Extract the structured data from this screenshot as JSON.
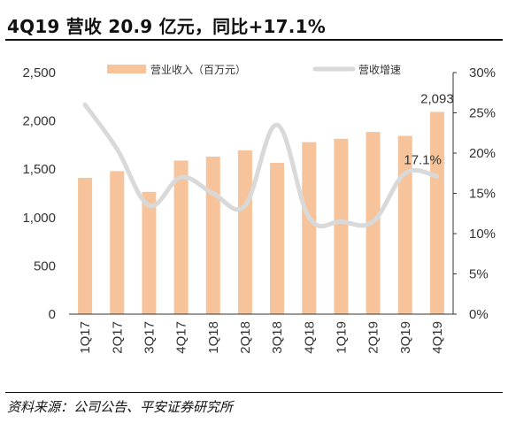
{
  "header": {
    "title": "4Q19 营收 20.9 亿元，同比+17.1%"
  },
  "footer": {
    "source": "资料来源：公司公告、平安证券研究所"
  },
  "colors": {
    "bar": "#f6c39a",
    "line": "#d9d9d9",
    "axis": "#333333"
  },
  "chart_data": {
    "type": "bar+line",
    "categories": [
      "1Q17",
      "2Q17",
      "3Q17",
      "4Q17",
      "1Q18",
      "2Q18",
      "3Q18",
      "4Q18",
      "1Q19",
      "2Q19",
      "3Q19",
      "4Q19"
    ],
    "series": [
      {
        "name": "营业收入（百万元）",
        "type": "bar",
        "axis": "left",
        "values": [
          1410,
          1480,
          1265,
          1590,
          1630,
          1695,
          1565,
          1780,
          1815,
          1885,
          1845,
          2093
        ]
      },
      {
        "name": "营收增速",
        "type": "line",
        "axis": "right",
        "unit": "%",
        "values": [
          26.0,
          20.5,
          13.5,
          17.0,
          15.0,
          13.5,
          23.5,
          12.0,
          11.5,
          11.5,
          17.5,
          17.1
        ]
      }
    ],
    "y_left": {
      "ticks": [
        "0",
        "500",
        "1,000",
        "1,500",
        "2,000",
        "2,500"
      ],
      "ylim": [
        0,
        2500
      ]
    },
    "y_right": {
      "ticks": [
        "0%",
        "5%",
        "10%",
        "15%",
        "20%",
        "25%",
        "30%"
      ],
      "ylim": [
        0,
        30
      ]
    },
    "annotations": [
      {
        "text": "2,093",
        "series": 0,
        "index": 11
      },
      {
        "text": "17.1%",
        "series": 1,
        "index": 11
      }
    ],
    "legend": "top",
    "grid": false
  }
}
